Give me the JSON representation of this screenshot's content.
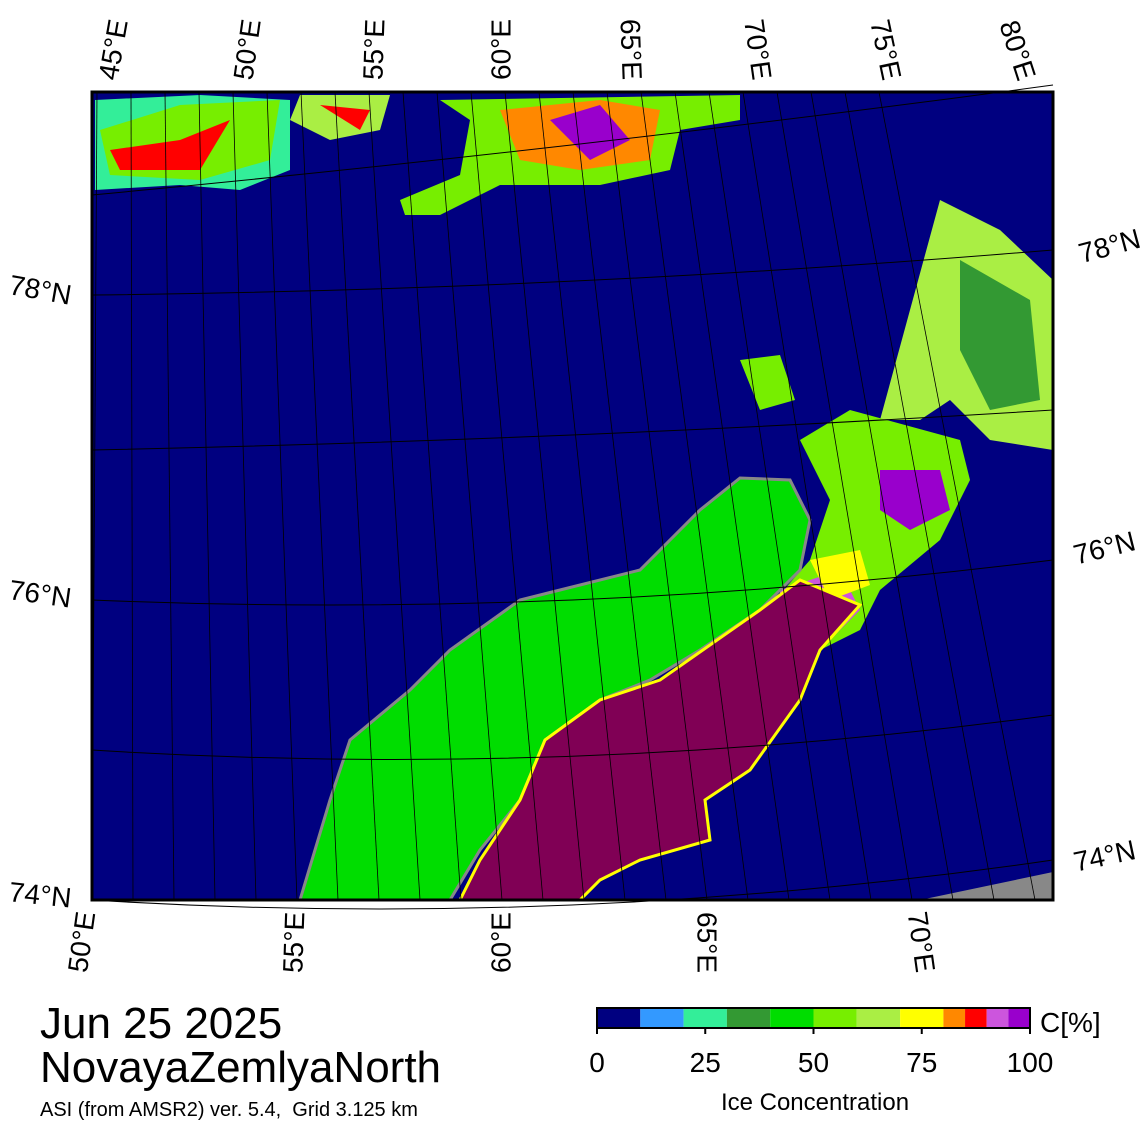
{
  "map": {
    "top_lon_labels": [
      "45°E",
      "50°E",
      "55°E",
      "60°E",
      "65°E",
      "70°E",
      "75°E",
      "80°E"
    ],
    "bottom_lon_labels": [
      "50°E",
      "55°E",
      "60°E",
      "65°E",
      "70°E"
    ],
    "left_lat_labels": [
      "78°N",
      "76°N",
      "74°N"
    ],
    "right_lat_labels": [
      "78°N",
      "76°N",
      "74°N"
    ]
  },
  "date": "Jun 25 2025",
  "region": "NovayaZemlyaNorth",
  "source": "ASI (from AMSR2) ver. 5.4,  Grid 3.125 km",
  "colorbar": {
    "levels": [
      0,
      10,
      20,
      30,
      40,
      50,
      60,
      70,
      80,
      85,
      90,
      95,
      100
    ],
    "colors": [
      "#000080",
      "#3399ff",
      "#33ee99",
      "#339933",
      "#00dd00",
      "#77ee00",
      "#aaee44",
      "#ffff00",
      "#ff8800",
      "#ff0000",
      "#cc55dd",
      "#9900cc"
    ],
    "ticks": [
      0,
      25,
      50,
      75,
      100
    ],
    "unit_label": "C[%]",
    "title": "Ice Concentration"
  }
}
